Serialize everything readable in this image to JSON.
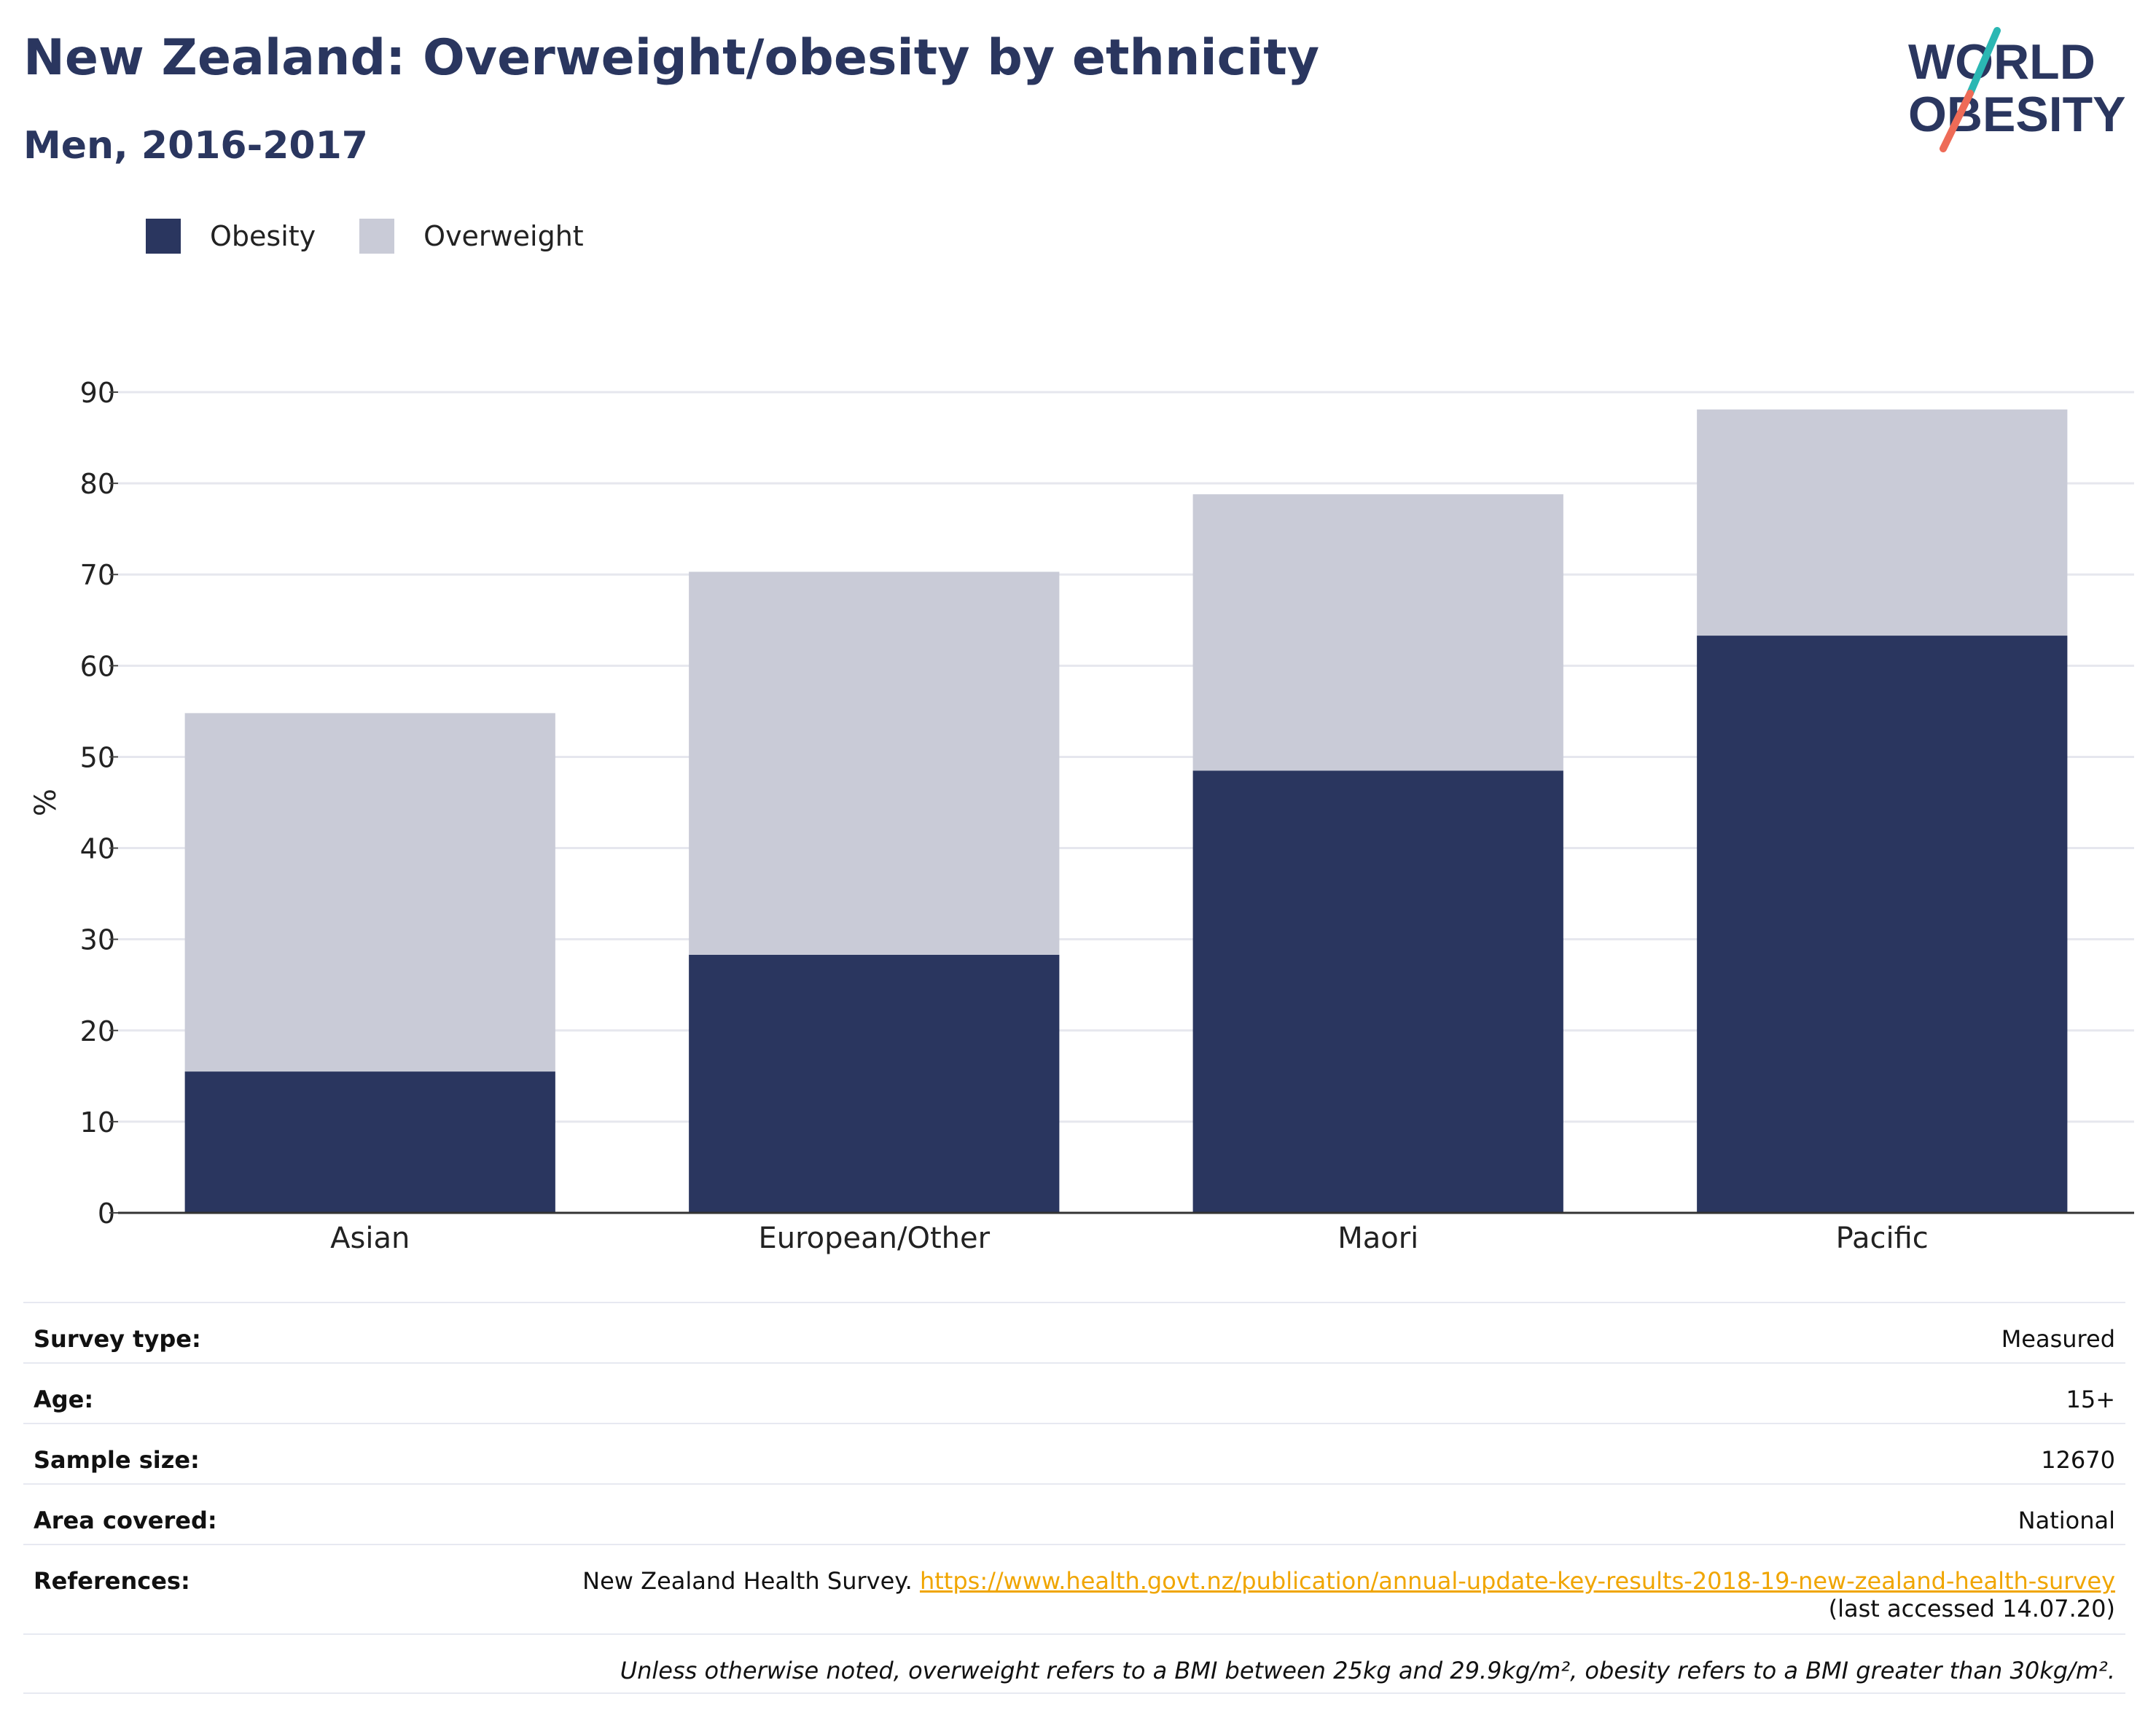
{
  "header": {
    "title": "New Zealand: Overweight/obesity by ethnicity",
    "subtitle": "Men, 2016-2017"
  },
  "logo": {
    "line1": "WORLD",
    "line2": "OBESITY"
  },
  "colors": {
    "obesity": "#2a365f",
    "overweight": "#c9cbd7",
    "logo_slash_top": "#2bb7b3",
    "logo_slash_bottom": "#ee6b57",
    "link": "#f0a500"
  },
  "legend": [
    {
      "label": "Obesity",
      "color": "#2a365f"
    },
    {
      "label": "Overweight",
      "color": "#c9cbd7"
    }
  ],
  "chart_data": {
    "type": "bar",
    "stacked": true,
    "categories": [
      "Asian",
      "European/Other",
      "Maori",
      "Pacific"
    ],
    "series": [
      {
        "name": "Obesity",
        "values": [
          15.5,
          28.3,
          48.5,
          63.3
        ]
      },
      {
        "name": "Overweight",
        "values": [
          39.3,
          42.0,
          30.3,
          24.8
        ]
      }
    ],
    "ylabel": "%",
    "ylim": [
      0,
      90
    ],
    "yticks": [
      0,
      10,
      20,
      30,
      40,
      50,
      60,
      70,
      80,
      90
    ],
    "grid": true,
    "legend_position": "top-left"
  },
  "meta": [
    {
      "key": "Survey type:",
      "value": "Measured"
    },
    {
      "key": "Age:",
      "value": "15+"
    },
    {
      "key": "Sample size:",
      "value": "12670"
    },
    {
      "key": "Area covered:",
      "value": "National"
    }
  ],
  "references": {
    "key": "References:",
    "text": "New Zealand Health Survey. ",
    "link": "https://www.health.govt.nz/publication/annual-update-key-results-2018-19-new-zealand-health-survey",
    "accessed": "(last accessed 14.07.20)"
  },
  "note": "Unless otherwise noted, overweight refers to a BMI between 25kg and 29.9kg/m², obesity refers to a BMI greater than 30kg/m²."
}
